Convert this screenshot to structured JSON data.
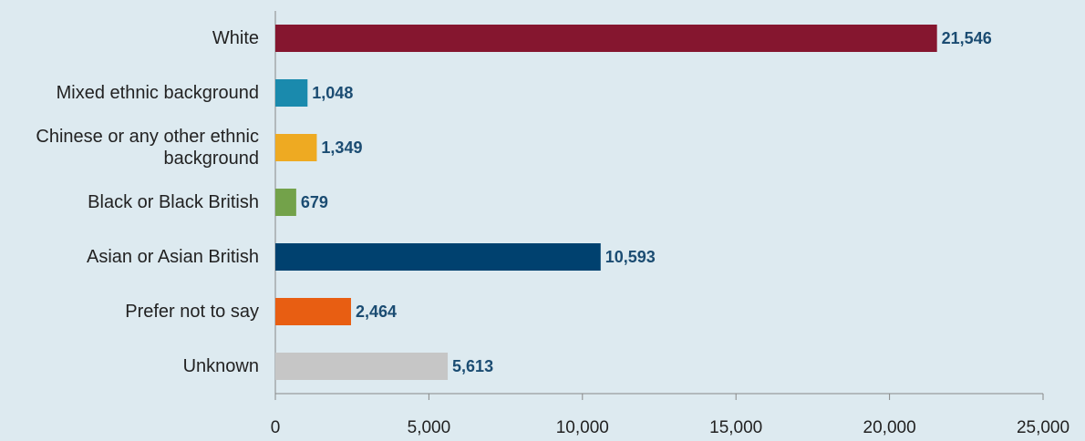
{
  "chart_data": {
    "type": "bar",
    "orientation": "horizontal",
    "categories": [
      "White",
      "Mixed ethnic background",
      "Chinese or any other ethnic background",
      "Black or Black British",
      "Asian or Asian British",
      "Prefer not to say",
      "Unknown"
    ],
    "values": [
      21546,
      1048,
      1349,
      679,
      10593,
      2464,
      5613
    ],
    "value_labels": [
      "21,546",
      "1,048",
      "1,349",
      "679",
      "10,593",
      "2,464",
      "5,613"
    ],
    "colors": [
      "#85162f",
      "#1a8aad",
      "#eeaa22",
      "#73a24a",
      "#00416f",
      "#e85e12",
      "#c6c6c6"
    ],
    "xlim": [
      0,
      25000
    ],
    "xticks": [
      0,
      {
        "value": 5000,
        "label": "5,000"
      },
      {
        "value": 10000,
        "label": "10,000"
      },
      {
        "value": 15000,
        "label": "15,000"
      },
      {
        "value": 20000,
        "label": "20,000"
      },
      {
        "value": 25000,
        "label": "25,000"
      }
    ],
    "grid": false
  }
}
